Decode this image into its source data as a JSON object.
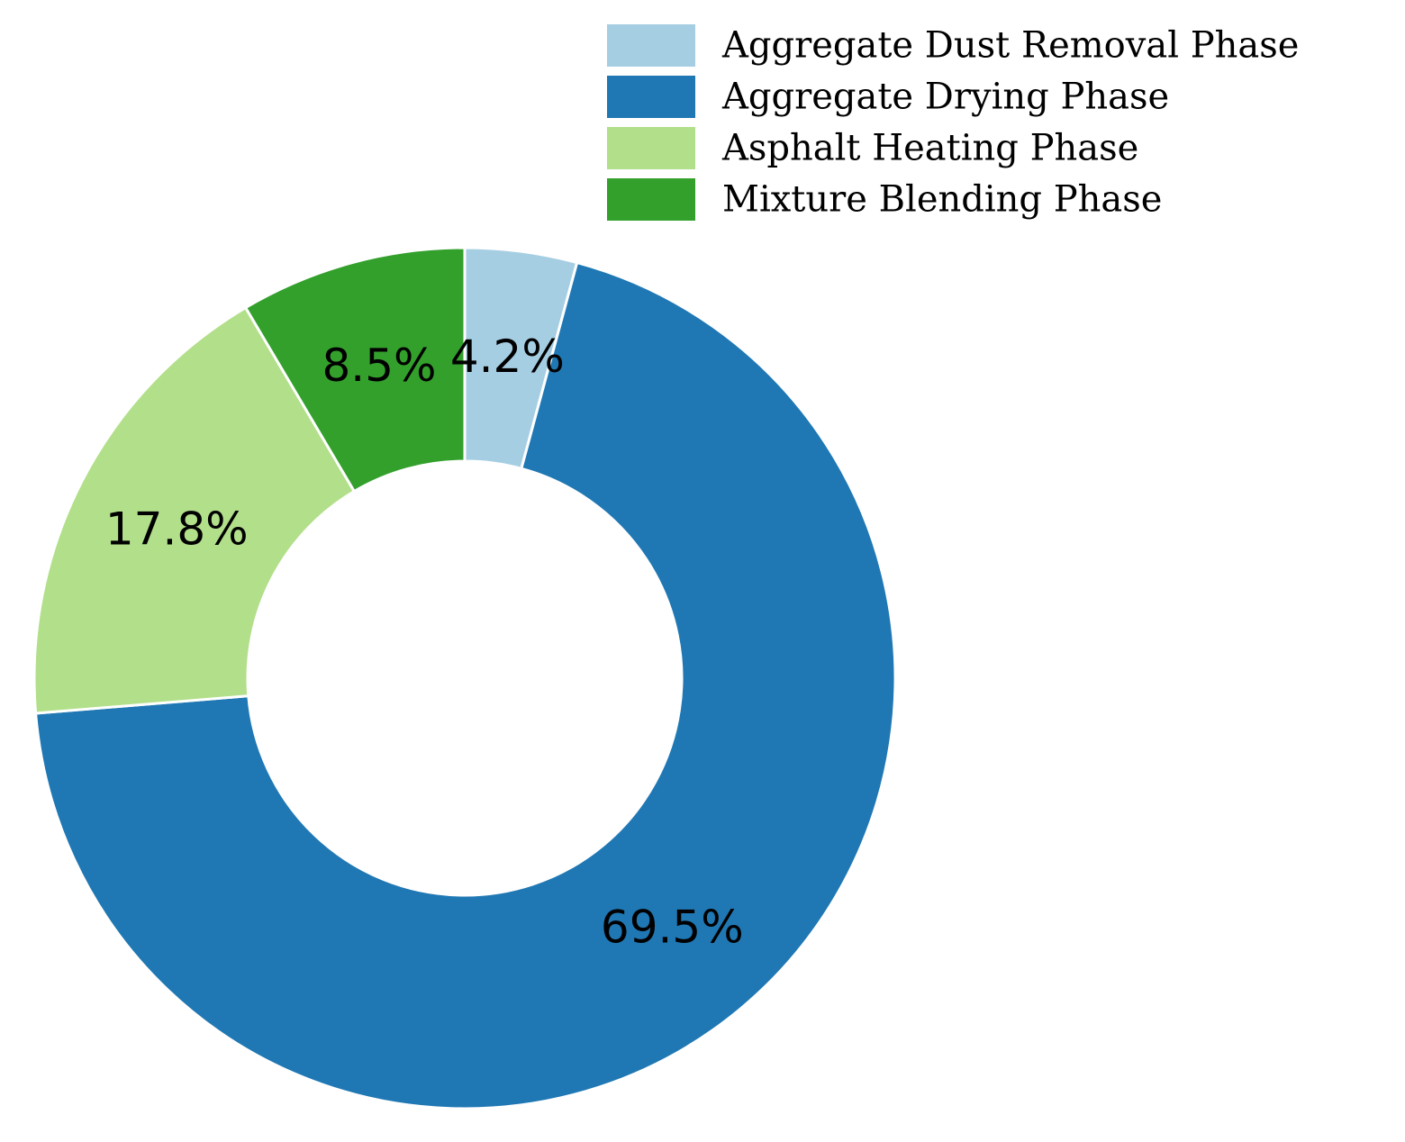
{
  "chart_data": {
    "type": "pie",
    "variant": "donut",
    "categories": [
      "Aggregate Dust Removal Phase",
      "Aggregate Drying Phase",
      "Asphalt Heating Phase",
      "Mixture Blending Phase"
    ],
    "values": [
      4.2,
      69.5,
      17.8,
      8.5
    ],
    "labels": [
      "4.2%",
      "69.5%",
      "17.8%",
      "8.5%"
    ],
    "colors": [
      "#a6cee3",
      "#1f78b4",
      "#b2df8a",
      "#33a02c"
    ],
    "legend": "top-right",
    "start": "top",
    "direction": "clockwise"
  }
}
